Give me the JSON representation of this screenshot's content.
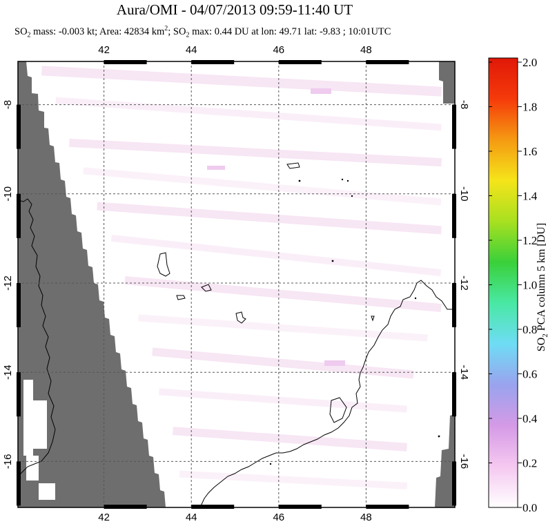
{
  "title": "Aura/OMI - 04/07/2013 09:59-11:40 UT",
  "subtitle": {
    "p1": "SO",
    "p1_sub": "2",
    "p2": " mass: -0.003 kt; Area: 42834 km",
    "p2_sup": "2",
    "p3": "; SO",
    "p3_sub": "2",
    "p4": " max: 0.44 DU at lon: 49.71 lat: -9.83 ; 10:01UTC"
  },
  "map": {
    "lon_range": [
      40.0,
      50.0
    ],
    "lat_range": [
      -17.0,
      -7.0
    ],
    "lon_ticks": [
      "42",
      "44",
      "46",
      "48"
    ],
    "lat_ticks": [
      "-8",
      "-10",
      "-12",
      "-14",
      "-16"
    ],
    "lon_values": [
      42,
      44,
      46,
      48
    ],
    "lat_values": [
      -8,
      -10,
      -12,
      -14,
      -16
    ],
    "no_data_color": "#6e6e6e",
    "grid": "dashed"
  },
  "colorbar": {
    "title_main": "SO",
    "title_sub": "2",
    "title_rest": " PCA column 5 km [DU]",
    "labels": [
      "2.0",
      "1.8",
      "1.6",
      "1.4",
      "1.2",
      "1.0",
      "0.8",
      "0.6",
      "0.4",
      "0.2",
      "0.0"
    ],
    "range": [
      0.0,
      2.0
    ],
    "colors": [
      "#ffffff",
      "#f5c8f0",
      "#d59ae6",
      "#9aa3ee",
      "#6fdcf5",
      "#49e8a4",
      "#3ad03a",
      "#a8e020",
      "#f5e41a",
      "#f59a12",
      "#f53a0a",
      "#e01808"
    ]
  }
}
